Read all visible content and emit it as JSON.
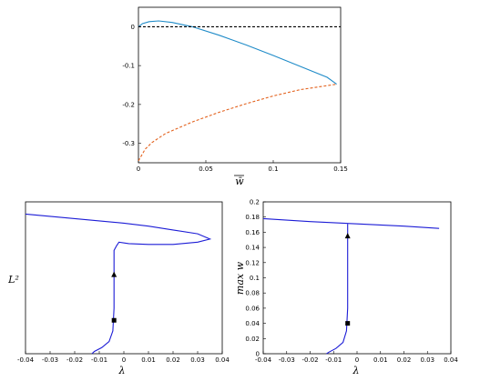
{
  "colors": {
    "blue": "#1f8bc8",
    "orange": "#e3621e",
    "navy": "#1c1cd6",
    "black": "#000000"
  },
  "chart_data": [
    {
      "type": "line",
      "title": "",
      "xlabel": "w̄",
      "ylabel": "",
      "xlim": [
        0,
        0.15
      ],
      "ylim": [
        -0.35,
        0.05
      ],
      "xticks": [
        "0",
        "0.05",
        "0.1",
        "0.15"
      ],
      "yticks": [
        "0",
        "-0.1",
        "-0.2",
        "-0.3"
      ],
      "grid": false,
      "series": [
        {
          "style": "solid",
          "color": "#1f8bc8",
          "x": [
            0,
            0.003,
            0.008,
            0.015,
            0.025,
            0.04,
            0.06,
            0.08,
            0.1,
            0.12,
            0.14,
            0.147
          ],
          "y": [
            0,
            0.008,
            0.013,
            0.015,
            0.011,
            0.0,
            -0.022,
            -0.047,
            -0.074,
            -0.102,
            -0.13,
            -0.148
          ]
        },
        {
          "style": "dashed",
          "color": "#e3621e",
          "x": [
            0,
            0.005,
            0.01,
            0.02,
            0.04,
            0.06,
            0.08,
            0.1,
            0.12,
            0.147
          ],
          "y": [
            -0.345,
            -0.315,
            -0.298,
            -0.275,
            -0.245,
            -0.22,
            -0.198,
            -0.178,
            -0.162,
            -0.148
          ]
        },
        {
          "style": "dashed",
          "color": "#000000",
          "x": [
            0,
            0.15
          ],
          "y": [
            0,
            0
          ]
        }
      ]
    },
    {
      "type": "line",
      "title": "",
      "xlabel": "λ",
      "ylabel": "L²",
      "xlim": [
        -0.04,
        0.04
      ],
      "ylim": [
        0,
        1
      ],
      "xticks": [
        "-0.04",
        "-0.03",
        "-0.02",
        "-0.01",
        "0",
        "0.01",
        "0.02",
        "0.03",
        "0.04"
      ],
      "grid": false,
      "series": [
        {
          "color": "#1c1cd6",
          "x": [
            -0.04,
            -0.03,
            -0.02,
            -0.01,
            0,
            0.01,
            0.02,
            0.03,
            0.035,
            0.03,
            0.02,
            0.01,
            0.002,
            -0.002,
            -0.003,
            -0.004,
            -0.004,
            -0.004,
            -0.0045,
            -0.006,
            -0.009,
            -0.012,
            -0.013
          ],
          "y": [
            0.92,
            0.905,
            0.89,
            0.875,
            0.86,
            0.84,
            0.815,
            0.79,
            0.755,
            0.735,
            0.72,
            0.72,
            0.725,
            0.735,
            0.71,
            0.68,
            0.5,
            0.3,
            0.15,
            0.08,
            0.04,
            0.015,
            0.0
          ]
        }
      ],
      "markers": [
        {
          "shape": "triangle",
          "x": -0.004,
          "y": 0.52
        },
        {
          "shape": "square",
          "x": -0.004,
          "y": 0.22
        }
      ]
    },
    {
      "type": "line",
      "title": "",
      "xlabel": "λ",
      "ylabel": "max w",
      "xlim": [
        -0.04,
        0.04
      ],
      "ylim": [
        0,
        0.2
      ],
      "xticks": [
        "-0.04",
        "-0.03",
        "-0.02",
        "-0.01",
        "0",
        "0.01",
        "0.02",
        "0.03",
        "0.04"
      ],
      "yticks": [
        "0",
        "0.02",
        "0.04",
        "0.06",
        "0.08",
        "0.1",
        "0.12",
        "0.14",
        "0.16",
        "0.18",
        "0.2"
      ],
      "grid": false,
      "series": [
        {
          "color": "#1c1cd6",
          "x": [
            -0.04,
            -0.02,
            0,
            0.02,
            0.035
          ],
          "y": [
            0.178,
            0.174,
            0.171,
            0.168,
            0.165
          ]
        },
        {
          "color": "#1c1cd6",
          "x": [
            -0.004,
            -0.004,
            -0.004,
            -0.004,
            -0.0045,
            -0.006,
            -0.009,
            -0.012,
            -0.013
          ],
          "y": [
            0.171,
            0.14,
            0.1,
            0.06,
            0.03,
            0.015,
            0.007,
            0.002,
            0.0
          ]
        }
      ],
      "markers": [
        {
          "shape": "triangle",
          "x": -0.004,
          "y": 0.155
        },
        {
          "shape": "square",
          "x": -0.004,
          "y": 0.04
        }
      ]
    }
  ]
}
